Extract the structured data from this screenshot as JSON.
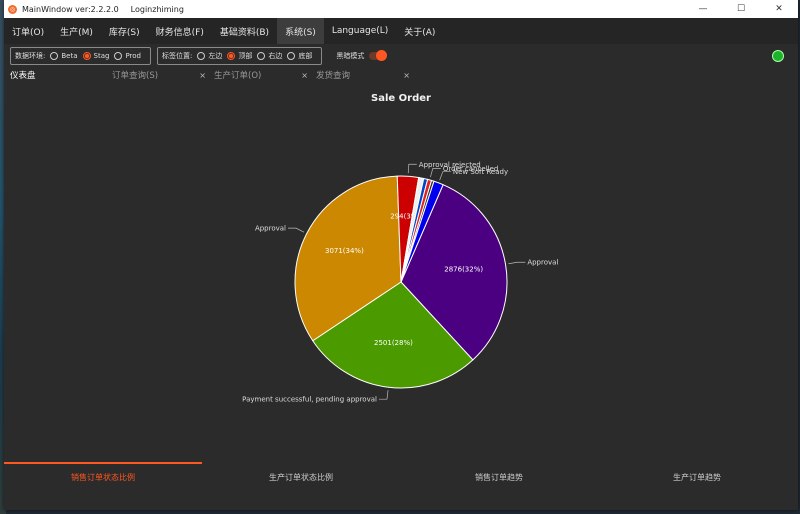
{
  "window": {
    "title": "MainWindow ver:2.2.2.0",
    "user": "Loginzhiming",
    "app_icon": "app-icon"
  },
  "menu": [
    "订单(O)",
    "生产(M)",
    "库存(S)",
    "财务信息(F)",
    "基础资料(B)",
    "系统(S)",
    "Language(L)",
    "关于(A)"
  ],
  "toolbar": {
    "env_label": "数据环境:",
    "env_options": [
      "Beta",
      "Stag",
      "Prod"
    ],
    "env_selected": "Stag",
    "tabpos_label": "标签位置:",
    "tabpos_options": [
      "左边",
      "顶部",
      "右边",
      "底部"
    ],
    "tabpos_selected": "顶部",
    "dark_mode_label": "黑暗模式",
    "dark_mode": true,
    "status_color": "#1bb32a"
  },
  "tabs": [
    {
      "label": "仪表盘",
      "closable": false
    },
    {
      "label": "订单查询(S)",
      "closable": true
    },
    {
      "label": "生产订单(O)",
      "closable": true
    },
    {
      "label": "发货查询",
      "closable": true
    }
  ],
  "bottom_tabs": [
    "销售订单状态比例",
    "生产订单状态比例",
    "销售订单趋势",
    "生产订单趋势"
  ],
  "colors": {
    "accent": "#ff5722",
    "background": "#2b2b2b"
  },
  "chart_data": {
    "type": "pie",
    "title": "Sale Order",
    "slices": [
      {
        "name": "Approval",
        "value": 2876,
        "label": "2876(32%)",
        "color": "#4b0082"
      },
      {
        "name": "Payment successful, pending approval",
        "value": 2501,
        "label": "2501(28%)",
        "color": "#4b9a00"
      },
      {
        "name": "Approval",
        "value": 3071,
        "label": "3071(34%)",
        "color": "#cc8800"
      },
      {
        "name": "Approval rejected",
        "value": 294,
        "label": "294(3%)",
        "color": "#cc0000"
      },
      {
        "name": "",
        "value": 70,
        "label": "",
        "color": "#eeeeee"
      },
      {
        "name": "",
        "value": 55,
        "label": "",
        "color": "#0044cc"
      },
      {
        "name": "Order cancelled",
        "value": 55,
        "label": "",
        "color": "#dd2222"
      },
      {
        "name": "",
        "value": 35,
        "label": "",
        "color": "#333333"
      },
      {
        "name": "New Soft Ready",
        "value": 133,
        "label": "",
        "color": "#0000ee"
      }
    ]
  }
}
